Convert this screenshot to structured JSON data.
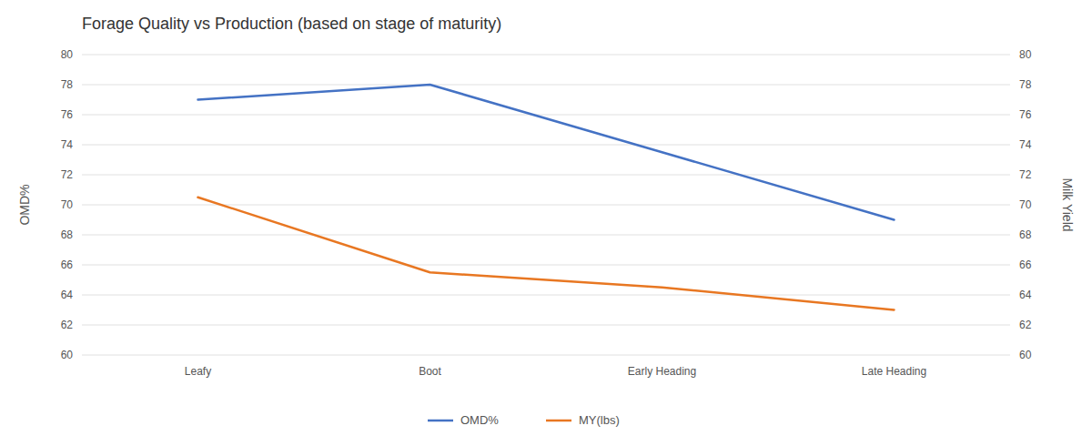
{
  "chart_data": {
    "type": "line",
    "title": "Forage Quality vs Production (based on stage of maturity)",
    "categories": [
      "Leafy",
      "Boot",
      "Early Heading",
      "Late Heading"
    ],
    "series": [
      {
        "name": "OMD%",
        "color": "#4472C4",
        "values": [
          77.0,
          78.0,
          73.5,
          69.0
        ]
      },
      {
        "name": "MY(lbs)",
        "color": "#E87722",
        "values": [
          70.5,
          65.5,
          64.5,
          63.0
        ],
        "axis": "y2"
      }
    ],
    "ylabel": "OMD%",
    "y2label": "Milk Yield",
    "ylim": [
      60,
      80
    ],
    "yticks": [
      60,
      62,
      64,
      66,
      68,
      70,
      72,
      74,
      76,
      78,
      80
    ],
    "y2lim": [
      60,
      80
    ],
    "y2ticks": [
      60,
      62,
      64,
      66,
      68,
      70,
      72,
      74,
      76,
      78,
      80
    ],
    "grid": true,
    "legend": "bottom"
  }
}
